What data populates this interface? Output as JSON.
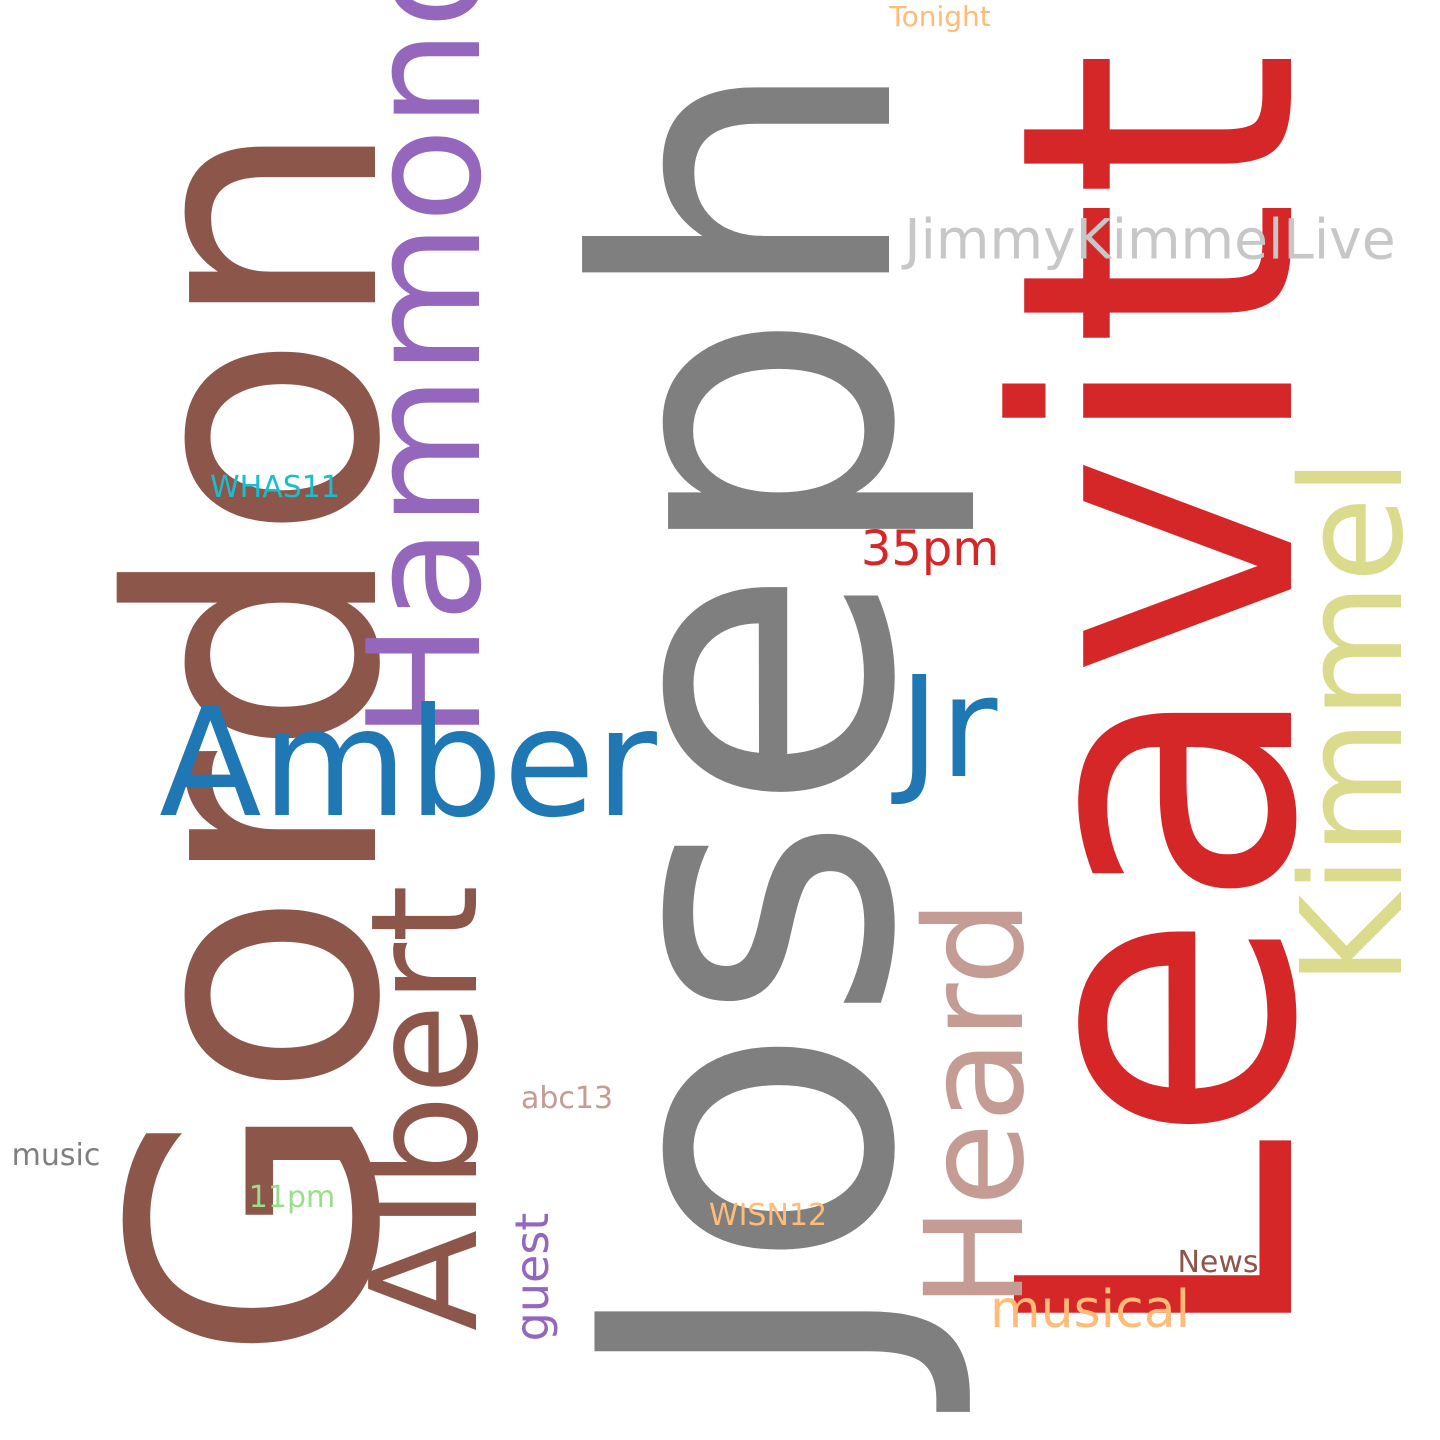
{
  "cloud": {
    "words": [
      {
        "id": "joseph",
        "text": "Joseph",
        "color": "#7f7f7f",
        "orientation": "vertical"
      },
      {
        "id": "leavitt",
        "text": "Leavitt",
        "color": "#d62728",
        "orientation": "vertical"
      },
      {
        "id": "gordon",
        "text": "Gordon",
        "color": "#8c564b",
        "orientation": "vertical"
      },
      {
        "id": "hammond",
        "text": "Hammond",
        "color": "#9467bd",
        "orientation": "vertical"
      },
      {
        "id": "amber",
        "text": "Amber",
        "color": "#1f77b4",
        "orientation": "horizontal"
      },
      {
        "id": "albert",
        "text": "Albert",
        "color": "#8c564b",
        "orientation": "vertical"
      },
      {
        "id": "kimmel",
        "text": "Kimmel",
        "color": "#dbdb8d",
        "orientation": "vertical"
      },
      {
        "id": "heard",
        "text": "Heard",
        "color": "#c49c94",
        "orientation": "vertical"
      },
      {
        "id": "jr",
        "text": "Jr",
        "color": "#1f77b4",
        "orientation": "horizontal"
      },
      {
        "id": "jimmykimmellive",
        "text": "JimmyKimmelLive",
        "color": "#c7c7c7",
        "orientation": "horizontal"
      },
      {
        "id": "musical",
        "text": "musical",
        "color": "#ffbb78",
        "orientation": "horizontal"
      },
      {
        "id": "35pm",
        "text": "35pm",
        "color": "#d62728",
        "orientation": "horizontal"
      },
      {
        "id": "guest",
        "text": "guest",
        "color": "#9467bd",
        "orientation": "vertical"
      },
      {
        "id": "whas11",
        "text": "WHAS11",
        "color": "#17becf",
        "orientation": "horizontal"
      },
      {
        "id": "abc13",
        "text": "abc13",
        "color": "#c49c94",
        "orientation": "horizontal"
      },
      {
        "id": "music",
        "text": "music",
        "color": "#7f7f7f",
        "orientation": "horizontal"
      },
      {
        "id": "11pm",
        "text": "11pm",
        "color": "#98df8a",
        "orientation": "horizontal"
      },
      {
        "id": "wisn12",
        "text": "WISN12",
        "color": "#ffbb78",
        "orientation": "horizontal"
      },
      {
        "id": "news",
        "text": "News",
        "color": "#8c564b",
        "orientation": "horizontal"
      },
      {
        "id": "tonight",
        "text": "Tonight",
        "color": "#ffbb78",
        "orientation": "horizontal"
      }
    ]
  }
}
